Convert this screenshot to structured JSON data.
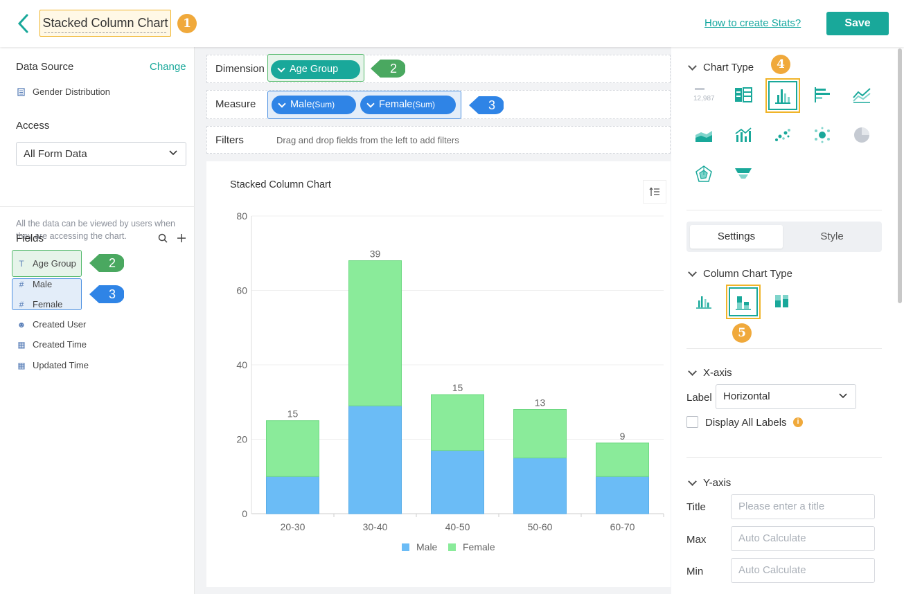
{
  "header": {
    "title": "Stacked Column Chart",
    "badge1": "1",
    "help_link": "How to create Stats?",
    "save_label": "Save"
  },
  "left": {
    "data_source_label": "Data Source",
    "change_label": "Change",
    "source_name": "Gender Distribution",
    "access_label": "Access",
    "access_value": "All Form Data",
    "access_hint": "All the data can be viewed by users when they are accessing the chart.",
    "fields_label": "Fields",
    "fields": [
      "Age Group",
      "Male",
      "Female",
      "Created User",
      "Created Time",
      "Updated Time"
    ],
    "badge2": "2",
    "badge3": "3"
  },
  "config": {
    "dimension_label": "Dimension",
    "dimension_pill": "Age Group",
    "measure_label": "Measure",
    "measure_pills": [
      {
        "name": "Male",
        "agg": "(Sum)"
      },
      {
        "name": "Female",
        "agg": "(Sum)"
      }
    ],
    "filters_label": "Filters",
    "filters_hint": "Drag and drop fields from the left to add filters"
  },
  "chart_data": {
    "type": "bar",
    "stacked": true,
    "title": "Stacked Column Chart",
    "categories": [
      "20-30",
      "30-40",
      "40-50",
      "50-60",
      "60-70"
    ],
    "series": [
      {
        "name": "Male",
        "values": [
          10,
          29,
          17,
          15,
          10
        ],
        "color": "#6bbcf6"
      },
      {
        "name": "Female",
        "values": [
          15,
          39,
          15,
          13,
          9
        ],
        "color": "#8aeb9a"
      }
    ],
    "ylim": [
      0,
      80
    ],
    "yticks": [
      0,
      20,
      40,
      60,
      80
    ],
    "legend": "bottom",
    "grid": true
  },
  "right": {
    "chart_type_label": "Chart Type",
    "badge4": "4",
    "kpi_sample": "12,987",
    "tabs": [
      "Settings",
      "Style"
    ],
    "column_type_label": "Column Chart Type",
    "badge5": "5",
    "xaxis_label": "X-axis",
    "label_label": "Label",
    "label_value": "Horizontal",
    "display_all_labels": "Display All Labels",
    "yaxis_label": "Y-axis",
    "title_label": "Title",
    "title_placeholder": "Please enter a title",
    "max_label": "Max",
    "max_placeholder": "Auto Calculate",
    "min_label": "Min",
    "min_placeholder": "Auto Calculate"
  },
  "colors": {
    "accent": "#19a89a",
    "badge": "#f0a93b",
    "green": "#4aa860",
    "blue": "#2f84e6"
  }
}
